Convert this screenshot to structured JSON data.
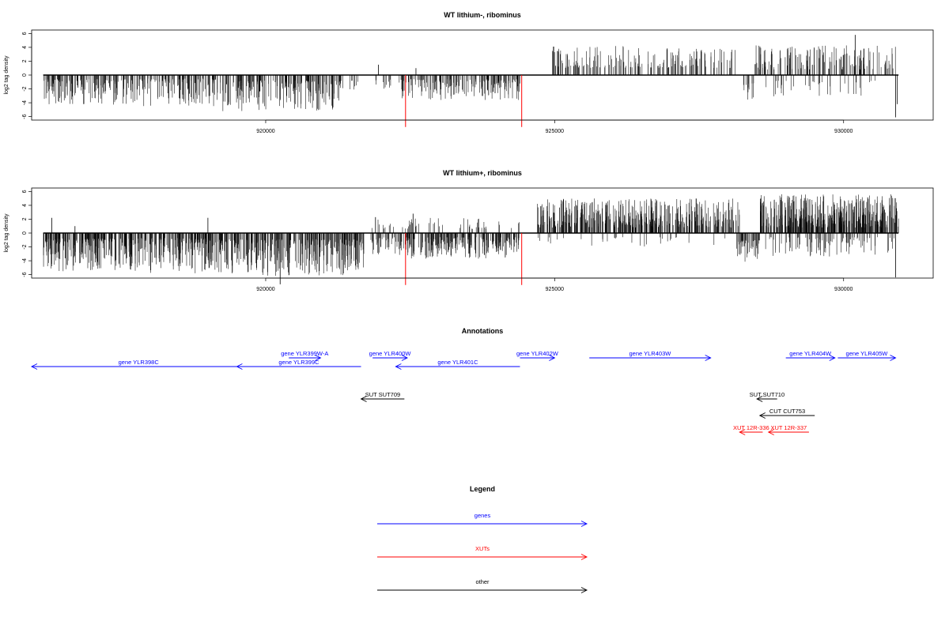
{
  "chart_data": [
    {
      "type": "bar",
      "title": "WT lithium-, ribominus",
      "ylabel": "log2 tag density",
      "xlim": [
        915950,
        931550
      ],
      "ylim": [
        -6.5,
        6.5
      ],
      "yticks": [
        -6,
        -4,
        -2,
        0,
        2,
        4,
        6
      ],
      "xticks": [
        920000,
        925000,
        930000
      ],
      "grid": false,
      "seed": 17,
      "bar_segments": [
        {
          "start": 916150,
          "end": 917800,
          "density": 0.9,
          "min": -4.3,
          "max": -0.6
        },
        {
          "start": 917800,
          "end": 919200,
          "density": 0.85,
          "min": -4.6,
          "max": -0.5
        },
        {
          "start": 919200,
          "end": 921300,
          "density": 0.9,
          "min": -5.3,
          "max": -0.8
        },
        {
          "start": 921300,
          "end": 921600,
          "density": 0.3,
          "min": -2.6,
          "max": -0.8
        },
        {
          "start": 921900,
          "end": 922200,
          "density": 0.35,
          "min": -2.2,
          "max": -0.5
        },
        {
          "start": 922300,
          "end": 924400,
          "density": 0.85,
          "min": -3.6,
          "max": -0.6
        },
        {
          "start": 924950,
          "end": 928150,
          "density": 0.55,
          "min": 1.0,
          "max": 4.2
        },
        {
          "start": 928250,
          "end": 928450,
          "density": 0.7,
          "min": -3.8,
          "max": -1.2
        },
        {
          "start": 928400,
          "end": 930900,
          "density": 0.6,
          "min": 0.8,
          "max": 4.3
        },
        {
          "start": 928600,
          "end": 930700,
          "density": 0.18,
          "min": -3.2,
          "max": -0.8
        }
      ],
      "bars": [
        {
          "x": 921950,
          "y": 1.5
        },
        {
          "x": 922600,
          "y": 1.0
        },
        {
          "x": 930200,
          "y": 5.8
        },
        {
          "x": 930350,
          "y": 3.8
        },
        {
          "x": 930900,
          "y": -6.1
        },
        {
          "x": 930930,
          "y": -4.2
        }
      ],
      "highlight_bars": [
        {
          "x": 922420,
          "y": -7.5,
          "color": "#ff0000"
        },
        {
          "x": 924430,
          "y": -7.5,
          "color": "#ff0000"
        }
      ],
      "baseline": {
        "start": 916150,
        "end": 930950
      }
    },
    {
      "type": "bar",
      "title": "WT lithium+, ribominus",
      "ylabel": "log2 tag density",
      "xlim": [
        915950,
        931550
      ],
      "ylim": [
        -6.5,
        6.5
      ],
      "yticks": [
        -6,
        -4,
        -2,
        0,
        2,
        4,
        6
      ],
      "xticks": [
        920000,
        925000,
        930000
      ],
      "grid": false,
      "seed": 91,
      "bar_segments": [
        {
          "start": 916150,
          "end": 917800,
          "density": 1.4,
          "min": -5.5,
          "max": -0.8
        },
        {
          "start": 917800,
          "end": 919200,
          "density": 1.3,
          "min": -5.8,
          "max": -0.7
        },
        {
          "start": 919200,
          "end": 921700,
          "density": 1.3,
          "min": -6.2,
          "max": -0.9
        },
        {
          "start": 921800,
          "end": 922300,
          "density": 0.7,
          "min": -3.2,
          "max": -0.6
        },
        {
          "start": 922300,
          "end": 924400,
          "density": 1.1,
          "min": -3.8,
          "max": -0.6
        },
        {
          "start": 921800,
          "end": 924400,
          "density": 0.2,
          "min": 0.6,
          "max": 2.2
        },
        {
          "start": 924700,
          "end": 928200,
          "density": 1.2,
          "min": 0.8,
          "max": 5.0
        },
        {
          "start": 924700,
          "end": 928200,
          "density": 0.1,
          "min": -2.0,
          "max": -0.6
        },
        {
          "start": 928150,
          "end": 928550,
          "density": 1.0,
          "min": -4.3,
          "max": -1.0
        },
        {
          "start": 928550,
          "end": 930950,
          "density": 1.7,
          "min": 0.8,
          "max": 5.6
        },
        {
          "start": 928550,
          "end": 930900,
          "density": 0.4,
          "min": -3.4,
          "max": -0.6
        }
      ],
      "bars": [
        {
          "x": 916300,
          "y": 2.2
        },
        {
          "x": 916700,
          "y": 1.0
        },
        {
          "x": 919000,
          "y": 2.2
        },
        {
          "x": 920250,
          "y": -7.4
        },
        {
          "x": 921900,
          "y": 2.3
        },
        {
          "x": 922550,
          "y": 2.8
        },
        {
          "x": 930900,
          "y": -6.4
        }
      ],
      "highlight_bars": [
        {
          "x": 922420,
          "y": -7.5,
          "color": "#ff0000"
        },
        {
          "x": 924430,
          "y": -7.5,
          "color": "#ff0000"
        }
      ],
      "baseline": {
        "start": 916150,
        "end": 930950
      }
    }
  ],
  "annotations": {
    "title": "Annotations",
    "xlim": [
      915950,
      931550
    ],
    "items": [
      {
        "label": "gene YLR398C",
        "start": 919650,
        "end": 915950,
        "row": 1,
        "color": "#0000ff"
      },
      {
        "label": "gene YLR399W-A",
        "start": 920400,
        "end": 920950,
        "row": 0,
        "color": "#0000ff"
      },
      {
        "label": "gene YLR399C",
        "start": 921650,
        "end": 919500,
        "row": 1,
        "color": "#0000ff"
      },
      {
        "label": "gene YLR400W",
        "start": 921850,
        "end": 922450,
        "row": 0,
        "color": "#0000ff"
      },
      {
        "label": "gene YLR401C",
        "start": 924400,
        "end": 922250,
        "row": 1,
        "color": "#0000ff"
      },
      {
        "label": "gene YLR402W",
        "start": 924400,
        "end": 925000,
        "row": 0,
        "color": "#0000ff"
      },
      {
        "label": "gene YLR403W",
        "start": 925600,
        "end": 927700,
        "row": 0,
        "color": "#0000ff"
      },
      {
        "label": "gene YLR404W",
        "start": 929000,
        "end": 929850,
        "row": 0,
        "color": "#0000ff"
      },
      {
        "label": "gene YLR405W",
        "start": 929900,
        "end": 930900,
        "row": 0,
        "color": "#0000ff"
      },
      {
        "label": "SUT SUT709",
        "start": 922400,
        "end": 921650,
        "row": 3,
        "color": "#000000"
      },
      {
        "label": "SUT SUT710",
        "start": 928850,
        "end": 928500,
        "row": 3,
        "color": "#000000"
      },
      {
        "label": "CUT CUT753",
        "start": 929500,
        "end": 928550,
        "row": 4,
        "color": "#000000"
      },
      {
        "label": "XUT 12R-336",
        "start": 928600,
        "end": 928200,
        "row": 5,
        "color": "#ff0000"
      },
      {
        "label": "XUT 12R-337",
        "start": 929400,
        "end": 928700,
        "row": 5,
        "color": "#ff0000"
      }
    ]
  },
  "legend": {
    "title": "Legend",
    "entries": [
      {
        "label": "genes",
        "color": "#0000ff"
      },
      {
        "label": "XUTs",
        "color": "#ff0000"
      },
      {
        "label": "other",
        "color": "#000000"
      }
    ]
  }
}
